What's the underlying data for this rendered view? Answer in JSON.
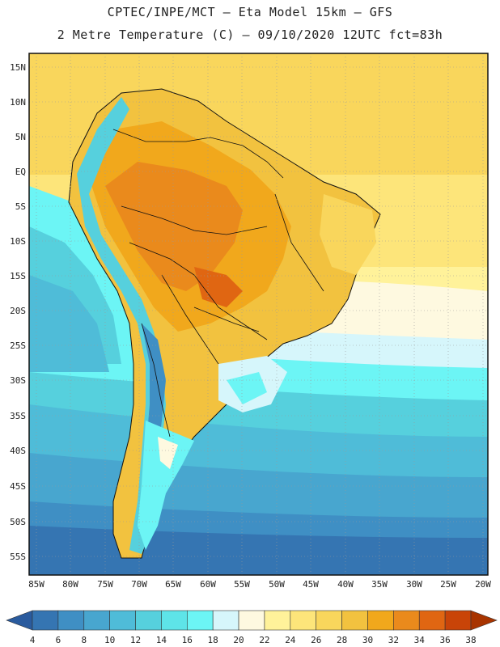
{
  "header": {
    "line1": "CPTEC/INPE/MCT –  Eta Model 15km – GFS",
    "line2": "2 Metre Temperature (C) – 09/10/2020 12UTC fct=83h"
  },
  "map": {
    "lat_labels": [
      "15N",
      "10N",
      "5N",
      "EQ",
      "5S",
      "10S",
      "15S",
      "20S",
      "25S",
      "30S",
      "35S",
      "40S",
      "45S",
      "50S",
      "55S"
    ],
    "lon_labels": [
      "85W",
      "80W",
      "75W",
      "70W",
      "65W",
      "60W",
      "55W",
      "50W",
      "45W",
      "40W",
      "35W",
      "30W",
      "25W",
      "20W"
    ]
  },
  "colorbar": {
    "labels": [
      "4",
      "6",
      "8",
      "10",
      "12",
      "14",
      "16",
      "18",
      "20",
      "22",
      "24",
      "26",
      "28",
      "30",
      "32",
      "34",
      "36",
      "38"
    ],
    "colors": [
      "#2a5b9e",
      "#3575b2",
      "#3f8fc4",
      "#48a6cf",
      "#4fbcd8",
      "#56d0dd",
      "#5ee4e8",
      "#6cf5f5",
      "#d6f6fb",
      "#fef9e0",
      "#fff29a",
      "#fde57a",
      "#f9d65c",
      "#f2c23f",
      "#f1a81c",
      "#ea8a1c",
      "#e06612",
      "#c94408",
      "#a83400"
    ]
  }
}
